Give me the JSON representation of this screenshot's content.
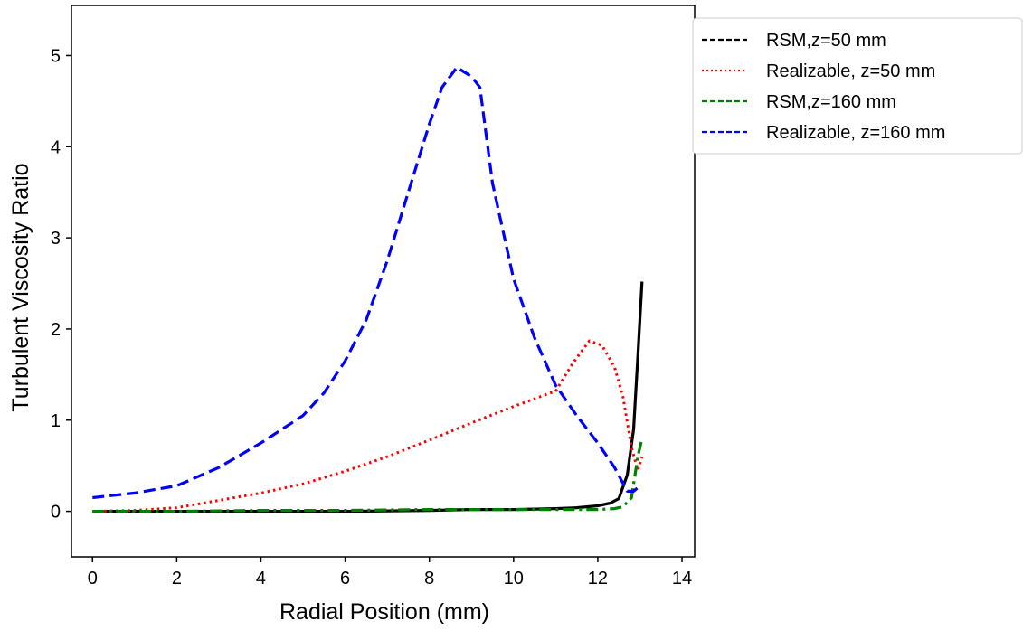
{
  "chart_data": {
    "type": "line",
    "xlabel": "Radial Position (mm)",
    "ylabel": "Turbulent Viscosity Ratio",
    "xlim": [
      -0.5,
      14.3
    ],
    "ylim": [
      -0.5,
      5.55
    ],
    "xticks": [
      0,
      2,
      4,
      6,
      8,
      10,
      12,
      14
    ],
    "yticks": [
      0,
      1,
      2,
      3,
      4,
      5
    ],
    "grid": false,
    "legend_position": "outside-top-right",
    "series": [
      {
        "name": "RSM,z=50 mm",
        "color": "#000000",
        "style": "solid",
        "x": [
          0,
          2,
          4,
          6,
          8,
          9,
          10,
          11,
          11.5,
          12,
          12.3,
          12.5,
          12.7,
          12.85,
          12.95,
          13.05
        ],
        "y": [
          0,
          0,
          0,
          0,
          0.01,
          0.02,
          0.02,
          0.03,
          0.04,
          0.06,
          0.09,
          0.14,
          0.4,
          0.9,
          1.7,
          2.52
        ]
      },
      {
        "name": "Realizable, z=50 mm",
        "color": "#ff0000",
        "style": "dotted",
        "x": [
          0,
          1,
          2,
          3,
          4,
          5,
          6,
          7,
          8,
          9,
          10,
          11,
          11.4,
          11.8,
          12.1,
          12.4,
          12.6,
          12.8,
          12.95,
          13.05
        ],
        "y": [
          0,
          0.01,
          0.04,
          0.12,
          0.2,
          0.3,
          0.44,
          0.6,
          0.78,
          0.97,
          1.15,
          1.32,
          1.62,
          1.87,
          1.82,
          1.58,
          1.25,
          0.7,
          0.45,
          0.6
        ]
      },
      {
        "name": "RSM,z=160 mm",
        "color": "#008000",
        "style": "dashdot",
        "x": [
          0,
          2,
          4,
          6,
          8,
          10,
          11,
          12,
          12.4,
          12.6,
          12.8,
          12.95,
          13.05
        ],
        "y": [
          0,
          0,
          0.01,
          0.01,
          0.02,
          0.02,
          0.02,
          0.02,
          0.03,
          0.05,
          0.15,
          0.6,
          0.8
        ]
      },
      {
        "name": "Realizable, z=160 mm",
        "color": "#0000ff",
        "style": "dashed",
        "x": [
          0,
          1,
          2,
          3,
          4,
          5,
          5.5,
          6,
          6.5,
          7,
          7.5,
          8,
          8.3,
          8.65,
          9,
          9.2,
          9.5,
          10,
          10.5,
          11,
          11.5,
          12,
          12.4,
          12.7,
          12.85,
          13.0
        ],
        "y": [
          0.15,
          0.2,
          0.28,
          0.48,
          0.75,
          1.05,
          1.3,
          1.65,
          2.1,
          2.75,
          3.5,
          4.25,
          4.65,
          4.87,
          4.77,
          4.65,
          3.6,
          2.55,
          1.9,
          1.38,
          1.05,
          0.75,
          0.48,
          0.22,
          0.22,
          0.28
        ]
      }
    ]
  }
}
